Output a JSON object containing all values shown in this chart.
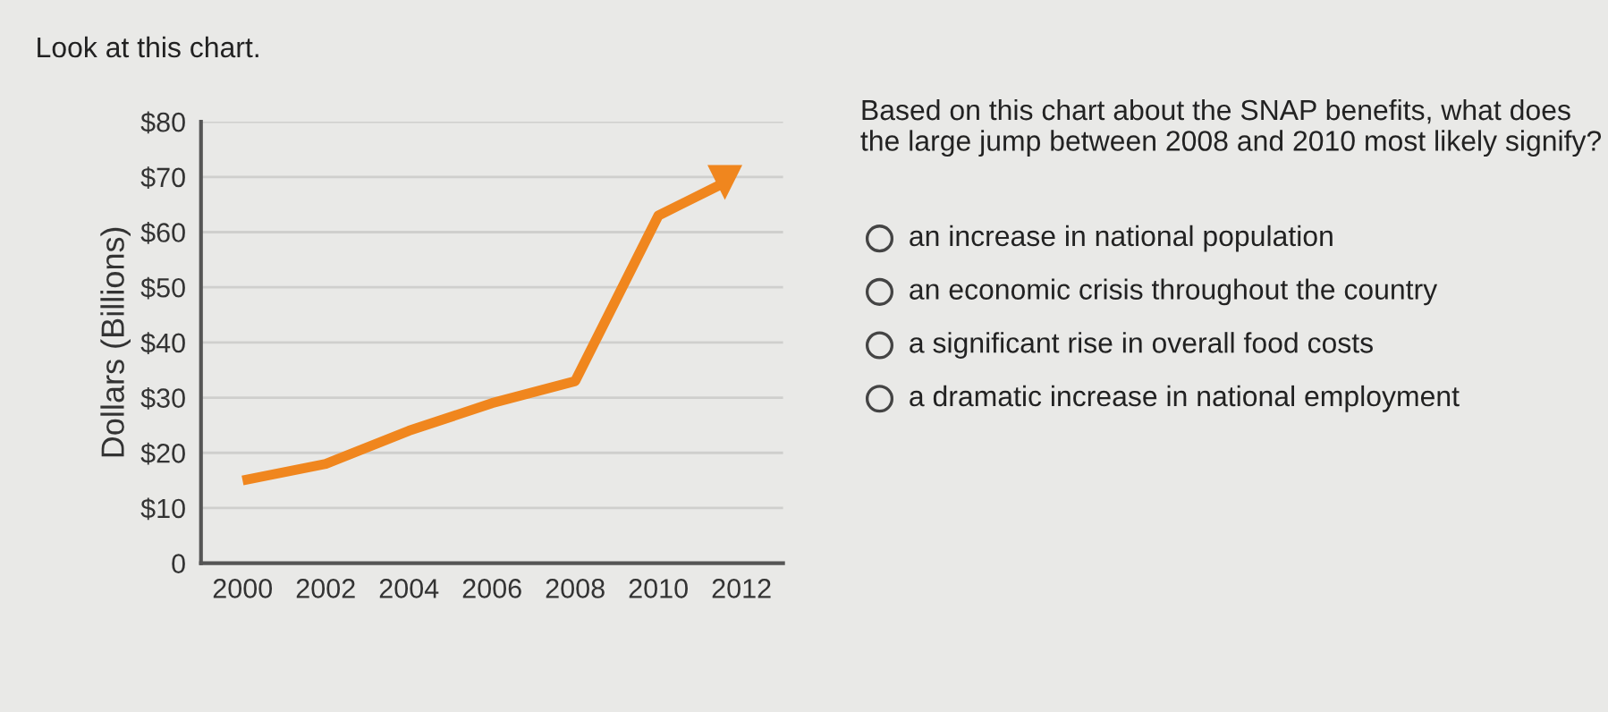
{
  "chart_data": {
    "type": "line",
    "title": "Look at this chart.",
    "ylabel": "Dollars (Billions)",
    "x": [
      2000,
      2002,
      2004,
      2006,
      2008,
      2010,
      2011.6
    ],
    "series": [
      {
        "color": "#f0861e",
        "values": [
          15,
          18,
          24,
          29,
          33,
          63,
          69
        ]
      }
    ],
    "xlim": [
      1999,
      2013
    ],
    "xticks": [
      2000,
      2002,
      2004,
      2006,
      2008,
      2010,
      2012
    ],
    "ylim": [
      0,
      80
    ],
    "yticks": [
      0,
      {
        "value": 10,
        "label": "$10"
      },
      {
        "value": 20,
        "label": "$20"
      },
      {
        "value": 30,
        "label": "$30"
      },
      {
        "value": 40,
        "label": "$40"
      },
      {
        "value": 50,
        "label": "$50"
      },
      {
        "value": 60,
        "label": "$60"
      },
      {
        "value": 70,
        "label": "$70"
      },
      {
        "value": 80,
        "label": "$80"
      }
    ],
    "grid": "y",
    "annotations": [
      "Based on this chart about the SNAP benefits, what does the large jump between 2008 and 2010 most likely signify?",
      "an increase in national population",
      "an economic crisis throughout the country",
      "a significant rise in overall food costs",
      "a dramatic increase in national employment"
    ]
  }
}
